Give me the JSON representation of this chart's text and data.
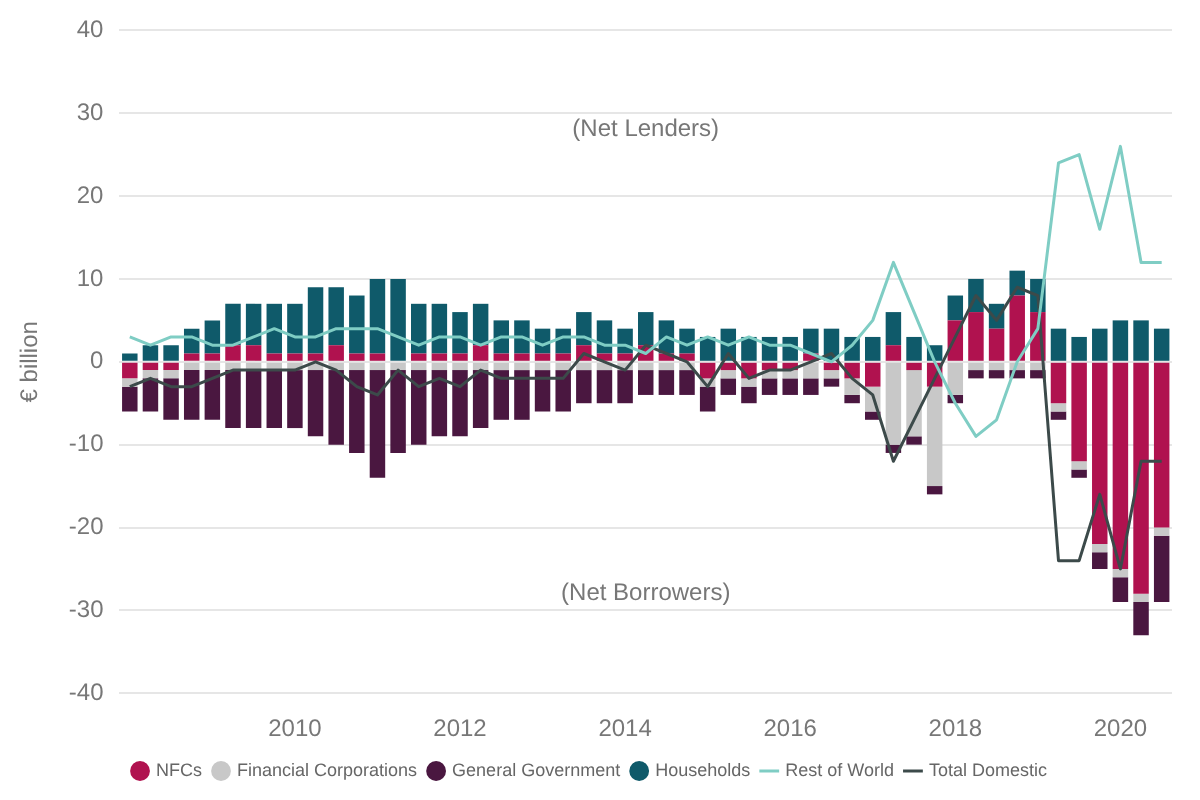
{
  "chart_data": {
    "type": "bar",
    "stacked": true,
    "ylabel": "€ billion",
    "categories": [
      null,
      null,
      null,
      null,
      null,
      null,
      null,
      null,
      "2010",
      null,
      null,
      null,
      null,
      null,
      null,
      null,
      "2012",
      null,
      null,
      null,
      null,
      null,
      null,
      null,
      "2014",
      null,
      null,
      null,
      null,
      null,
      null,
      null,
      "2016",
      null,
      null,
      null,
      null,
      null,
      null,
      null,
      "2018",
      null,
      null,
      null,
      null,
      null,
      null,
      null,
      "2020",
      null,
      null
    ],
    "series": [
      {
        "name": "NFCs",
        "color": "#b0124f",
        "values": [
          -2,
          -1,
          -1,
          1,
          1,
          2,
          2,
          1,
          1,
          1,
          2,
          1,
          1,
          0,
          1,
          1,
          1,
          2,
          1,
          1,
          1,
          1,
          2,
          1,
          1,
          2,
          1,
          1,
          -2,
          -1,
          -2,
          -1,
          -1,
          1,
          -1,
          -2,
          -3,
          2,
          -1,
          -3,
          5,
          6,
          4,
          8,
          6,
          -5,
          -12,
          -22,
          -25,
          -28,
          -20
        ]
      },
      {
        "name": "Financial Corporations",
        "color": "#c8c8c8",
        "values": [
          -1,
          -1,
          -1,
          -1,
          -1,
          -1,
          -1,
          -1,
          -1,
          -1,
          -1,
          -1,
          -1,
          -1,
          -1,
          -1,
          -1,
          -1,
          -1,
          -1,
          -1,
          -1,
          -1,
          -1,
          -1,
          -1,
          -1,
          -1,
          -1,
          -1,
          -1,
          -1,
          -1,
          -2,
          -1,
          -2,
          -3,
          -10,
          -8,
          -12,
          -4,
          -1,
          -1,
          -1,
          -1,
          -1,
          -1,
          -1,
          -1,
          -1,
          -1
        ]
      },
      {
        "name": "General Government",
        "color": "#4a1740",
        "values": [
          -3,
          -4,
          -5,
          -6,
          -6,
          -7,
          -7,
          -7,
          -7,
          -8,
          -9,
          -10,
          -13,
          -10,
          -9,
          -8,
          -8,
          -7,
          -6,
          -6,
          -5,
          -5,
          -4,
          -4,
          -4,
          -3,
          -3,
          -3,
          -3,
          -2,
          -2,
          -2,
          -2,
          -2,
          -1,
          -1,
          -1,
          -1,
          -1,
          -1,
          -1,
          -1,
          -1,
          -1,
          -1,
          -1,
          -1,
          -2,
          -3,
          -4,
          -8
        ]
      },
      {
        "name": "Households",
        "color": "#0f5a6a",
        "values": [
          1,
          2,
          2,
          3,
          4,
          5,
          5,
          6,
          6,
          8,
          7,
          7,
          9,
          10,
          6,
          6,
          5,
          5,
          4,
          4,
          3,
          3,
          4,
          4,
          3,
          4,
          4,
          3,
          3,
          4,
          3,
          3,
          3,
          3,
          4,
          3,
          3,
          4,
          3,
          2,
          3,
          4,
          3,
          3,
          4,
          4,
          3,
          4,
          5,
          5,
          4
        ]
      },
      {
        "name": "Rest of World",
        "type": "line",
        "color": "#7fcdc4",
        "values": [
          3,
          2,
          3,
          3,
          2,
          2,
          3,
          4,
          3,
          3,
          4,
          4,
          4,
          3,
          2,
          3,
          3,
          2,
          3,
          3,
          2,
          3,
          3,
          2,
          2,
          1,
          3,
          2,
          3,
          2,
          3,
          2,
          2,
          1,
          0,
          2,
          5,
          12,
          6,
          0,
          -5,
          -9,
          -7,
          0,
          4,
          24,
          25,
          16,
          26,
          12,
          12
        ]
      },
      {
        "name": "Total Domestic",
        "type": "line",
        "color": "#3c4a4a",
        "values": [
          -3,
          -2,
          -3,
          -3,
          -2,
          -1,
          -1,
          -1,
          -1,
          0,
          -1,
          -3,
          -4,
          -1,
          -3,
          -2,
          -3,
          -1,
          -2,
          -2,
          -2,
          -2,
          1,
          0,
          -1,
          2,
          1,
          0,
          -3,
          1,
          -2,
          -1,
          -1,
          0,
          1,
          -2,
          -4,
          -12,
          -7,
          -2,
          3,
          8,
          5,
          9,
          8,
          -24,
          -24,
          -16,
          -25,
          -12,
          -12
        ]
      }
    ],
    "ylim": [
      -40,
      40
    ],
    "yticks": [
      -40,
      -30,
      -20,
      -10,
      0,
      10,
      20,
      30,
      40
    ],
    "grid": "y",
    "legend": "bottom",
    "annotations": [
      "(Net Lenders)",
      "(Net Borrowers)"
    ]
  }
}
